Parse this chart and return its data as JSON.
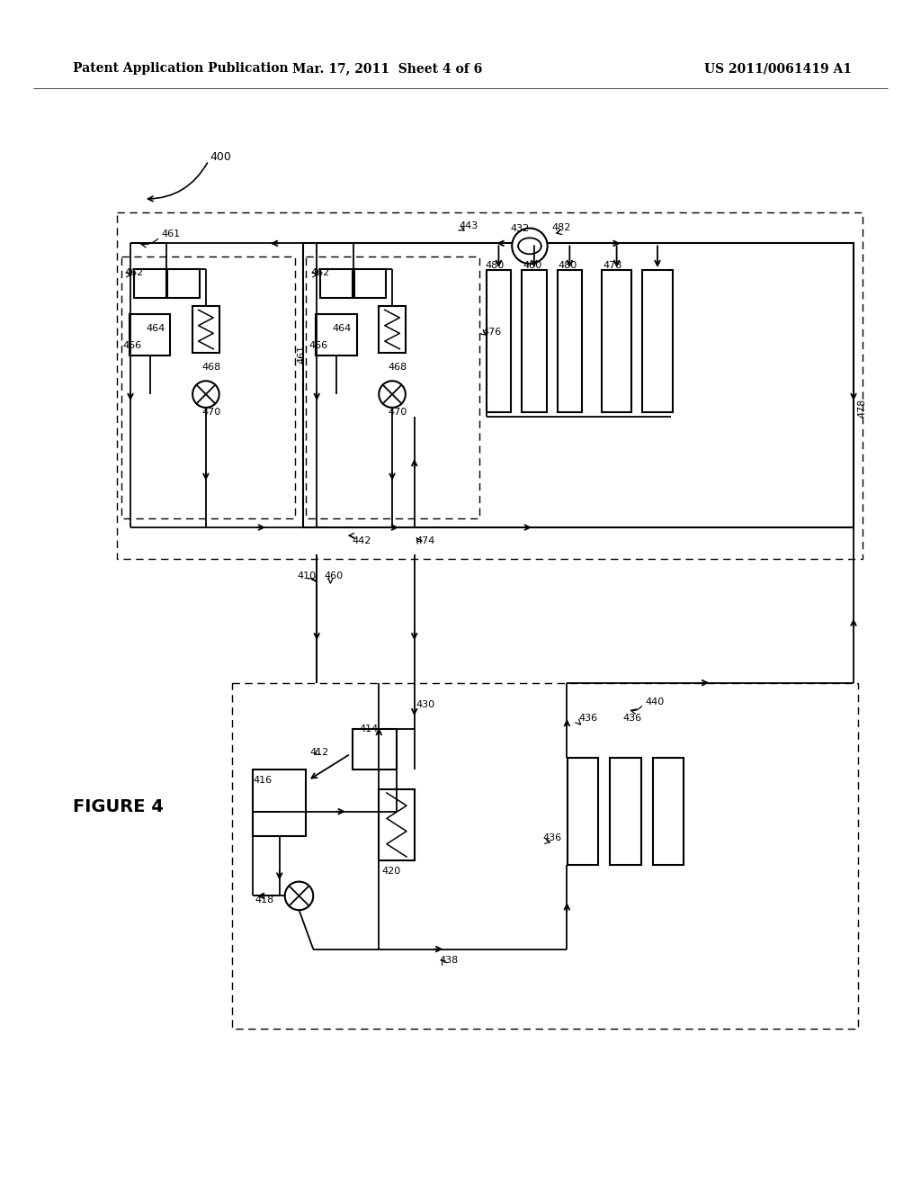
{
  "bg_color": "#ffffff",
  "header_left": "Patent Application Publication",
  "header_mid": "Mar. 17, 2011  Sheet 4 of 6",
  "header_right": "US 2011/0061419 A1",
  "figure_label": "FIGURE 4"
}
